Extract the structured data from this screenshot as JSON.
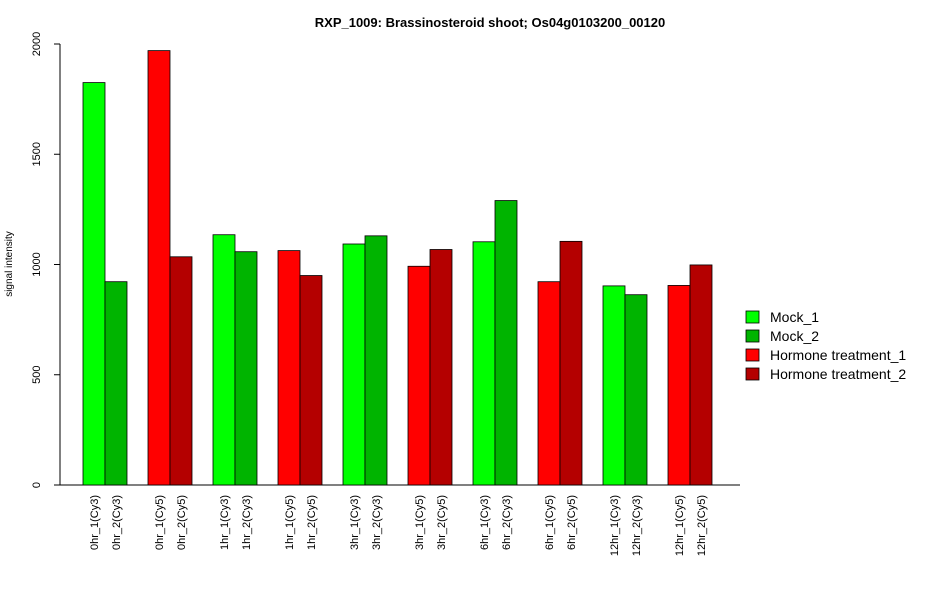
{
  "chart_data": {
    "type": "bar",
    "title": "RXP_1009: Brassinosteroid shoot; Os04g0103200_00120",
    "xlabel": "",
    "ylabel": "signal intensity",
    "ylim": [
      0,
      2000
    ],
    "yticks": [
      0,
      500,
      1000,
      1500,
      2000
    ],
    "grid": false,
    "legend_position": "right",
    "categories": [
      "0hr_1(Cy3)",
      "0hr_2(Cy3)",
      "0hr_1(Cy5)",
      "0hr_2(Cy5)",
      "1hr_1(Cy3)",
      "1hr_2(Cy3)",
      "1hr_1(Cy5)",
      "1hr_2(Cy5)",
      "3hr_1(Cy3)",
      "3hr_2(Cy3)",
      "3hr_1(Cy5)",
      "3hr_2(Cy5)",
      "6hr_1(Cy3)",
      "6hr_2(Cy3)",
      "6hr_1(Cy5)",
      "6hr_2(Cy5)",
      "12hr_1(Cy3)",
      "12hr_2(Cy3)",
      "12hr_1(Cy5)",
      "12hr_2(Cy5)"
    ],
    "values": [
      1825,
      922,
      1970,
      1035,
      1135,
      1058,
      1063,
      950,
      1093,
      1130,
      992,
      1068,
      1103,
      1290,
      922,
      1105,
      903,
      863,
      905,
      998
    ],
    "bar_series": [
      0,
      1,
      2,
      3,
      0,
      1,
      2,
      3,
      0,
      1,
      2,
      3,
      0,
      1,
      2,
      3,
      0,
      1,
      2,
      3
    ],
    "series": [
      {
        "name": "Mock_1",
        "color": "#00ff00"
      },
      {
        "name": "Mock_2",
        "color": "#00b400"
      },
      {
        "name": "Hormone treatment_1",
        "color": "#ff0000"
      },
      {
        "name": "Hormone treatment_2",
        "color": "#b40000"
      }
    ]
  }
}
